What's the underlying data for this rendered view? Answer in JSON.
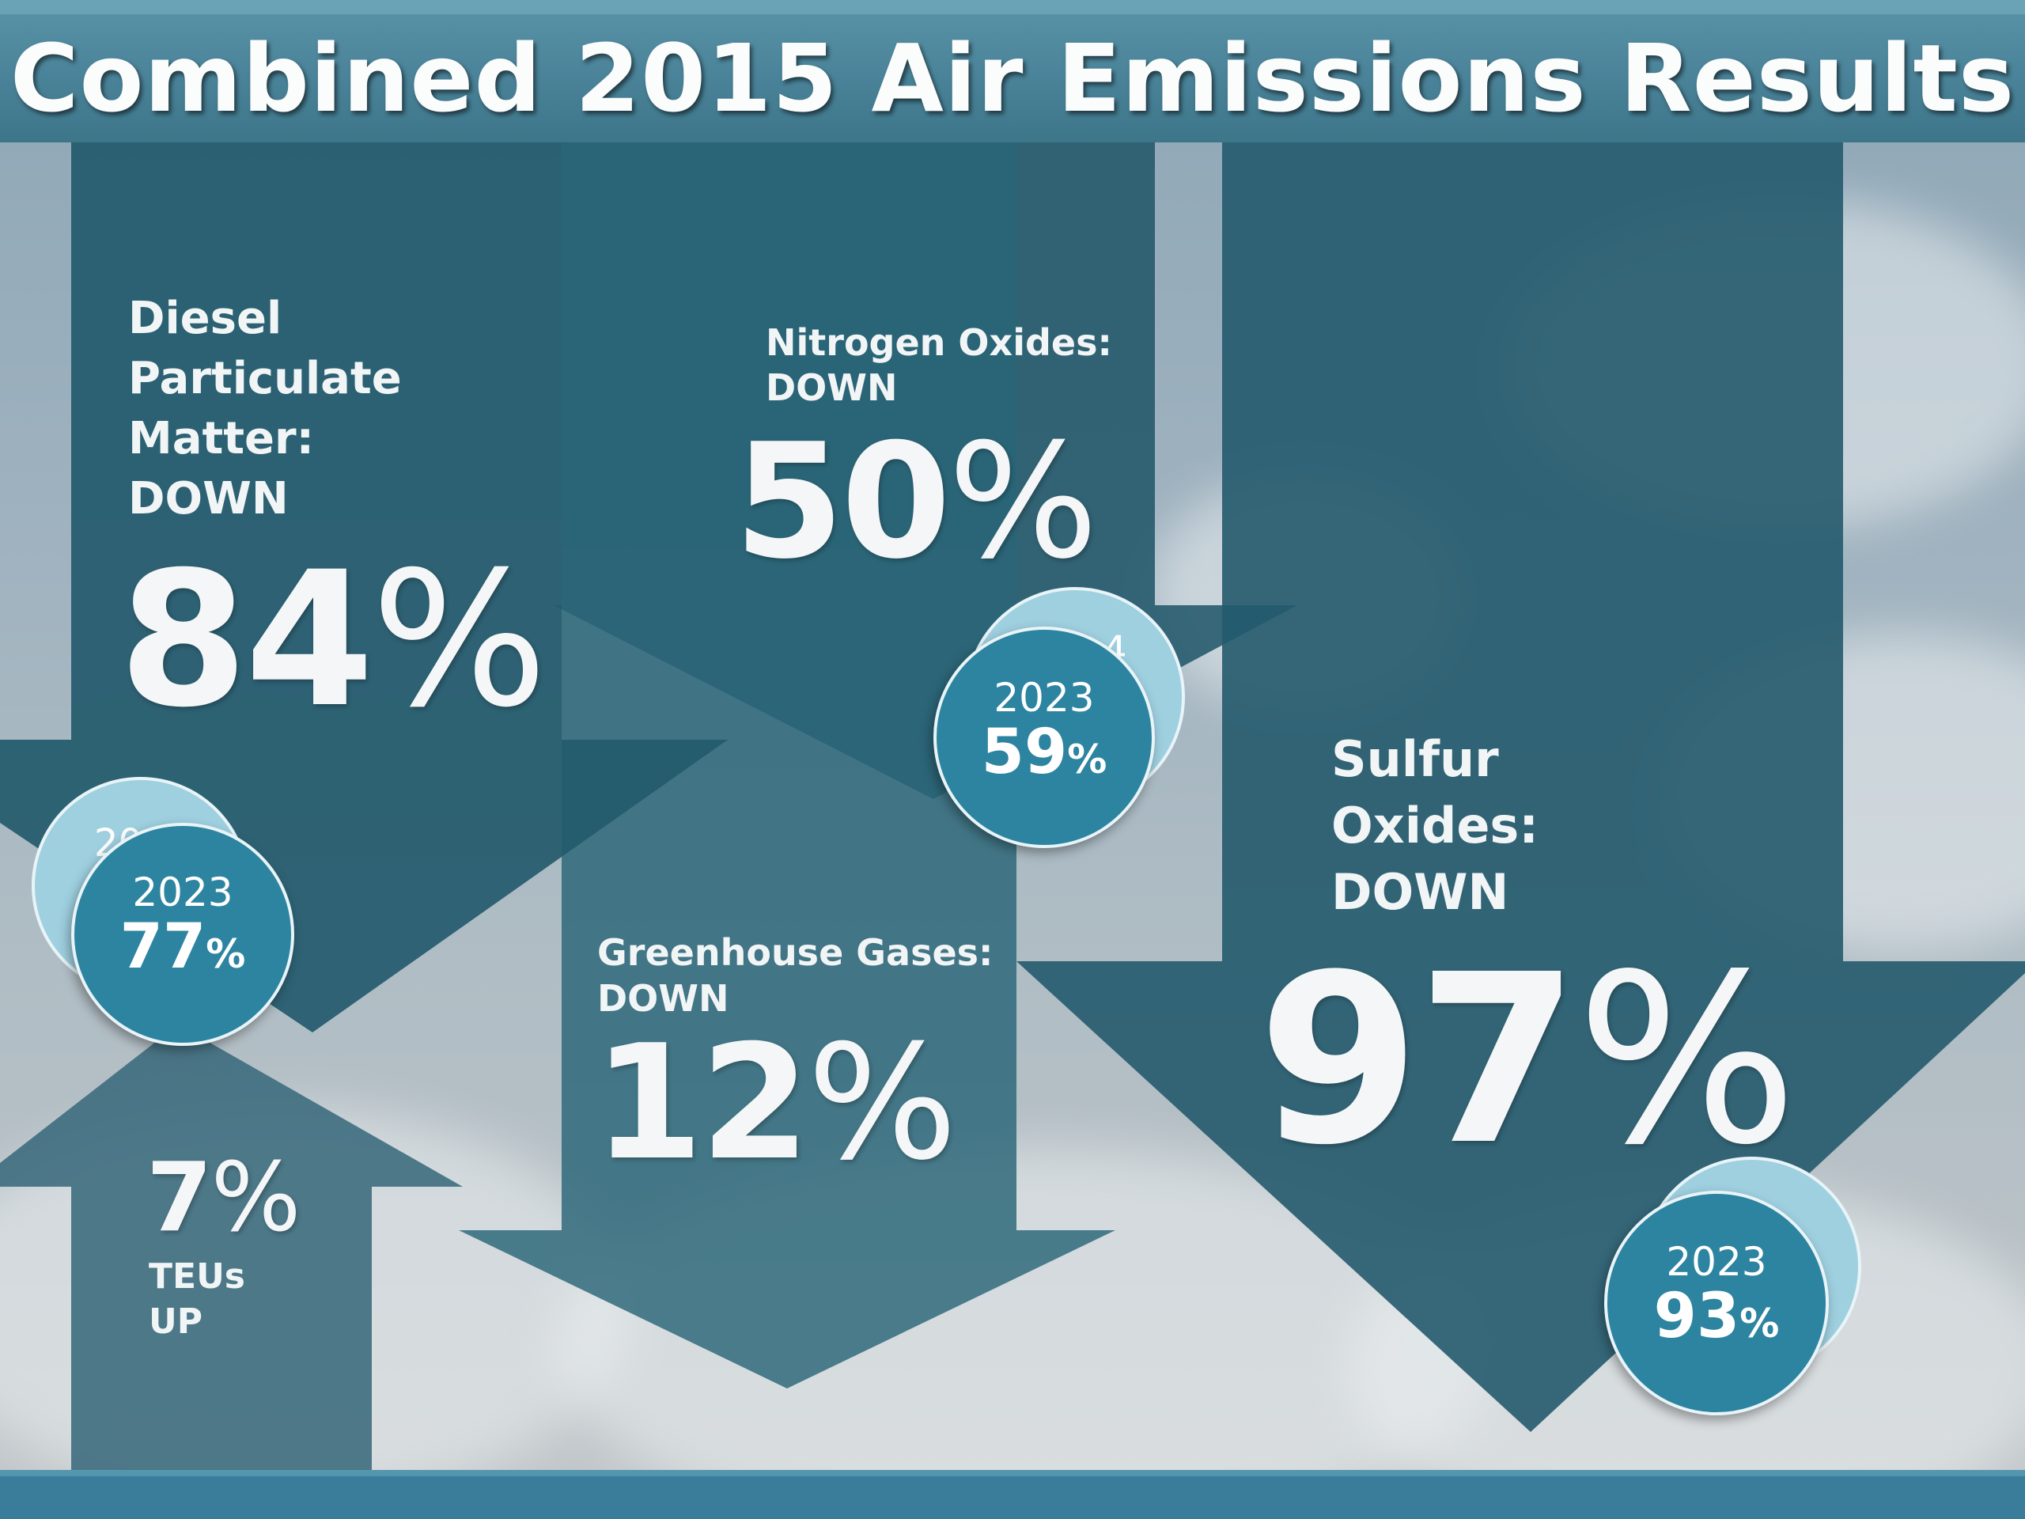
{
  "title": "Combined 2015 Air Emissions Results",
  "colors": {
    "title_bar": "#4a8399",
    "arrow_dark": "#245a6c",
    "arrow_mid": "#2f6678",
    "bubble_front": "#2d84a0",
    "bubble_back": "#9fd0e0",
    "text_light": "#f2f5f6"
  },
  "metrics": {
    "dpm": {
      "label": "Diesel\nParticulate\nMatter:\nDOWN",
      "value": "84",
      "unit": "%",
      "year": "2023",
      "year_value": "77",
      "year_unit": "%",
      "direction": "down"
    },
    "nox": {
      "label": "Nitrogen Oxides:\nDOWN",
      "value": "50",
      "unit": "%",
      "year": "2023",
      "year_value": "59",
      "year_unit": "%",
      "direction": "down"
    },
    "ghg": {
      "label": "Greenhouse Gases:\nDOWN",
      "value": "12",
      "unit": "%",
      "direction": "down"
    },
    "sox": {
      "label": "Sulfur\nOxides:\nDOWN",
      "value": "97",
      "unit": "%",
      "year": "2023",
      "year_value": "93",
      "year_unit": "%",
      "direction": "down"
    },
    "teu": {
      "value": "7",
      "unit": "%",
      "label": "TEUs\nUP",
      "direction": "up"
    }
  },
  "peek_text": {
    "dpm": "20",
    "nox": "4",
    "sox": ""
  }
}
